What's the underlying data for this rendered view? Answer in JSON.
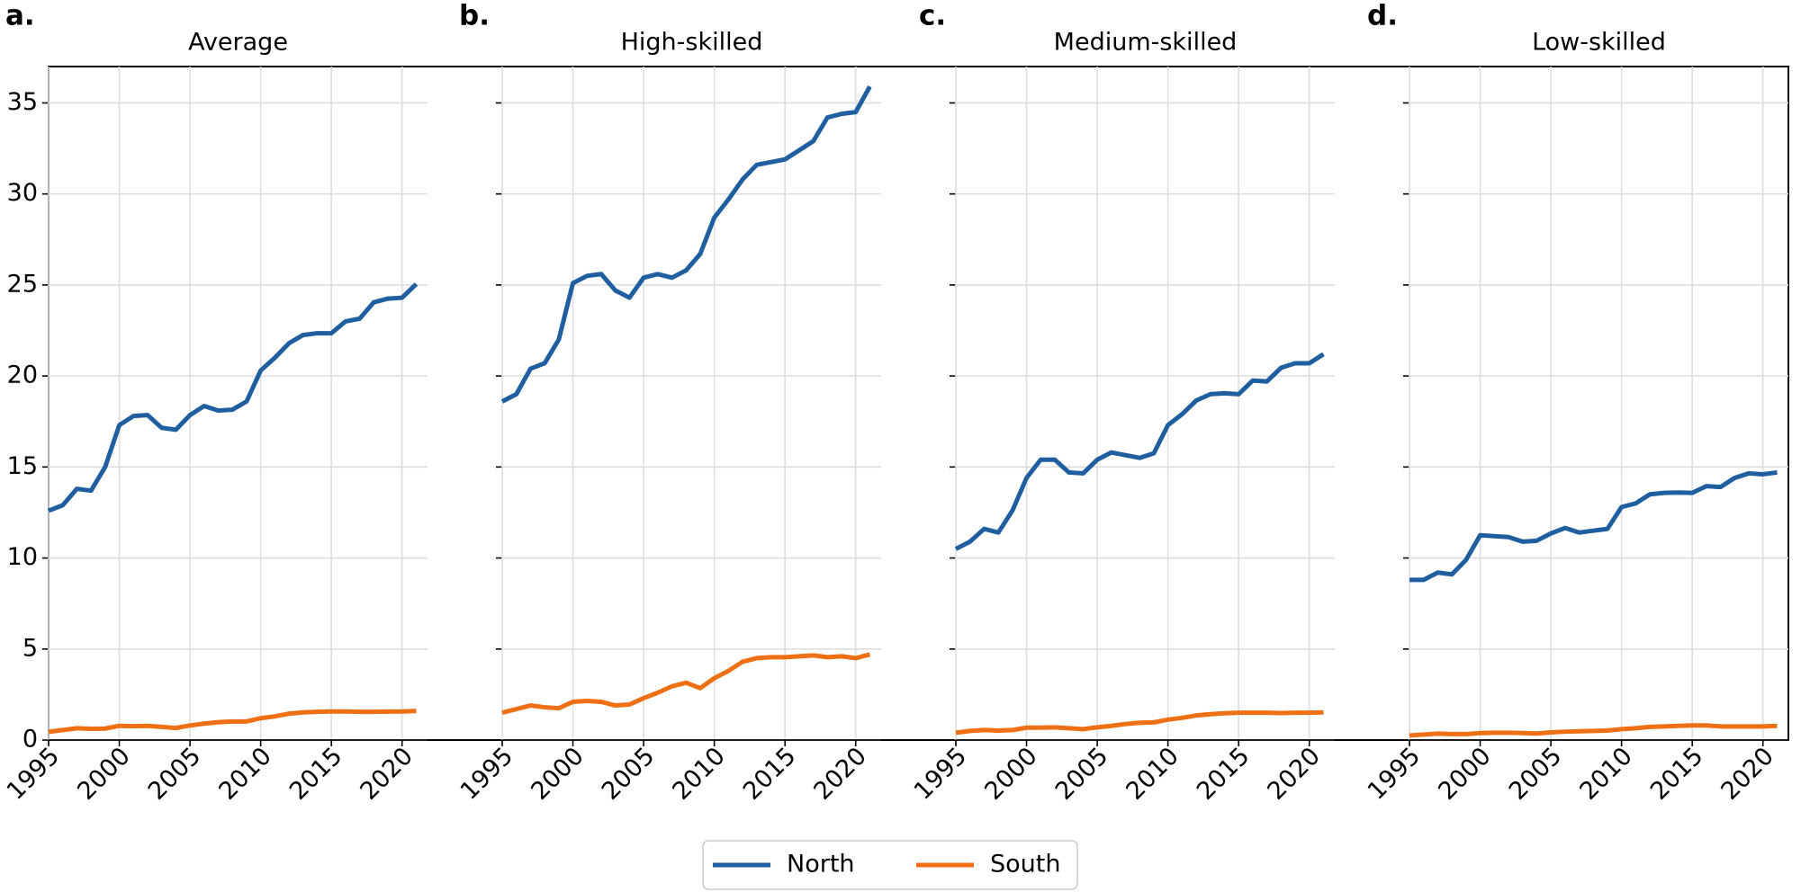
{
  "chart_data": [
    {
      "type": "line",
      "label": "a.",
      "title": "Average",
      "x": [
        1995,
        1996,
        1997,
        1998,
        1999,
        2000,
        2001,
        2002,
        2003,
        2004,
        2005,
        2006,
        2007,
        2008,
        2009,
        2010,
        2011,
        2012,
        2013,
        2014,
        2015,
        2016,
        2017,
        2018,
        2019,
        2020,
        2021
      ],
      "series": [
        {
          "name": "North",
          "color": "#1f5f9f",
          "values": [
            12.6,
            12.9,
            13.8,
            13.7,
            15.0,
            17.3,
            17.8,
            17.85,
            17.15,
            17.05,
            17.85,
            18.35,
            18.1,
            18.15,
            18.6,
            20.3,
            21.0,
            21.8,
            22.25,
            22.35,
            22.35,
            23.0,
            23.15,
            24.05,
            24.25,
            24.3,
            25.05
          ]
        },
        {
          "name": "South",
          "color": "#ef6f14",
          "values": [
            0.45,
            0.55,
            0.65,
            0.62,
            0.63,
            0.78,
            0.76,
            0.78,
            0.72,
            0.66,
            0.8,
            0.9,
            0.98,
            1.02,
            1.02,
            1.2,
            1.3,
            1.45,
            1.52,
            1.55,
            1.57,
            1.57,
            1.55,
            1.55,
            1.56,
            1.57,
            1.6
          ]
        }
      ],
      "xlim": [
        1995,
        2021.8
      ],
      "xticks": [
        1995,
        2000,
        2005,
        2010,
        2015,
        2020
      ],
      "ylim": [
        0,
        37
      ],
      "yticks": [
        0,
        5,
        10,
        15,
        20,
        25,
        30,
        35
      ],
      "grid": true
    },
    {
      "type": "line",
      "label": "b.",
      "title": "High-skilled",
      "x": [
        1995,
        1996,
        1997,
        1998,
        1999,
        2000,
        2001,
        2002,
        2003,
        2004,
        2005,
        2006,
        2007,
        2008,
        2009,
        2010,
        2011,
        2012,
        2013,
        2014,
        2015,
        2016,
        2017,
        2018,
        2019,
        2020,
        2021
      ],
      "series": [
        {
          "name": "North",
          "color": "#1f5f9f",
          "values": [
            18.6,
            19.0,
            20.4,
            20.7,
            22.0,
            25.1,
            25.5,
            25.6,
            24.7,
            24.3,
            25.4,
            25.6,
            25.4,
            25.8,
            26.7,
            28.7,
            29.7,
            30.8,
            31.6,
            31.75,
            31.9,
            32.4,
            32.9,
            34.2,
            34.4,
            34.5,
            35.9
          ]
        },
        {
          "name": "South",
          "color": "#ef6f14",
          "values": [
            1.5,
            1.7,
            1.9,
            1.8,
            1.75,
            2.1,
            2.15,
            2.1,
            1.9,
            1.95,
            2.3,
            2.6,
            2.95,
            3.15,
            2.85,
            3.4,
            3.8,
            4.3,
            4.5,
            4.55,
            4.55,
            4.6,
            4.65,
            4.55,
            4.6,
            4.5,
            4.7
          ]
        }
      ],
      "xlim": [
        1995,
        2021.8
      ],
      "xticks": [
        1995,
        2000,
        2005,
        2010,
        2015,
        2020
      ],
      "ylim": [
        0,
        37
      ],
      "yticks": [
        0,
        5,
        10,
        15,
        20,
        25,
        30,
        35
      ],
      "grid": true
    },
    {
      "type": "line",
      "label": "c.",
      "title": "Medium-skilled",
      "x": [
        1995,
        1996,
        1997,
        1998,
        1999,
        2000,
        2001,
        2002,
        2003,
        2004,
        2005,
        2006,
        2007,
        2008,
        2009,
        2010,
        2011,
        2012,
        2013,
        2014,
        2015,
        2016,
        2017,
        2018,
        2019,
        2020,
        2021
      ],
      "series": [
        {
          "name": "North",
          "color": "#1f5f9f",
          "values": [
            10.5,
            10.9,
            11.6,
            11.4,
            12.6,
            14.4,
            15.4,
            15.4,
            14.7,
            14.65,
            15.4,
            15.8,
            15.65,
            15.5,
            15.75,
            17.3,
            17.9,
            18.65,
            19.0,
            19.05,
            19.0,
            19.75,
            19.7,
            20.45,
            20.7,
            20.7,
            21.2
          ]
        },
        {
          "name": "South",
          "color": "#ef6f14",
          "values": [
            0.4,
            0.5,
            0.55,
            0.52,
            0.55,
            0.68,
            0.68,
            0.7,
            0.65,
            0.6,
            0.7,
            0.78,
            0.88,
            0.95,
            0.97,
            1.12,
            1.22,
            1.35,
            1.42,
            1.47,
            1.5,
            1.5,
            1.5,
            1.48,
            1.5,
            1.5,
            1.52
          ]
        }
      ],
      "xlim": [
        1995,
        2021.8
      ],
      "xticks": [
        1995,
        2000,
        2005,
        2010,
        2015,
        2020
      ],
      "ylim": [
        0,
        37
      ],
      "yticks": [
        0,
        5,
        10,
        15,
        20,
        25,
        30,
        35
      ],
      "grid": true
    },
    {
      "type": "line",
      "label": "d.",
      "title": "Low-skilled",
      "x": [
        1995,
        1996,
        1997,
        1998,
        1999,
        2000,
        2001,
        2002,
        2003,
        2004,
        2005,
        2006,
        2007,
        2008,
        2009,
        2010,
        2011,
        2012,
        2013,
        2014,
        2015,
        2016,
        2017,
        2018,
        2019,
        2020,
        2021
      ],
      "series": [
        {
          "name": "North",
          "color": "#1f5f9f",
          "values": [
            8.8,
            8.8,
            9.2,
            9.1,
            9.9,
            11.25,
            11.2,
            11.15,
            10.9,
            10.95,
            11.35,
            11.65,
            11.4,
            11.5,
            11.6,
            12.8,
            13.0,
            13.5,
            13.58,
            13.6,
            13.58,
            13.95,
            13.9,
            14.4,
            14.65,
            14.6,
            14.7
          ]
        },
        {
          "name": "South",
          "color": "#ef6f14",
          "values": [
            0.25,
            0.3,
            0.35,
            0.33,
            0.33,
            0.38,
            0.4,
            0.4,
            0.38,
            0.36,
            0.42,
            0.46,
            0.48,
            0.5,
            0.52,
            0.6,
            0.65,
            0.72,
            0.75,
            0.78,
            0.8,
            0.8,
            0.75,
            0.75,
            0.75,
            0.75,
            0.78
          ]
        }
      ],
      "xlim": [
        1995,
        2021.8
      ],
      "xticks": [
        1995,
        2000,
        2005,
        2010,
        2015,
        2020
      ],
      "ylim": [
        0,
        37
      ],
      "yticks": [
        0,
        5,
        10,
        15,
        20,
        25,
        30,
        35
      ],
      "grid": true
    }
  ]
}
